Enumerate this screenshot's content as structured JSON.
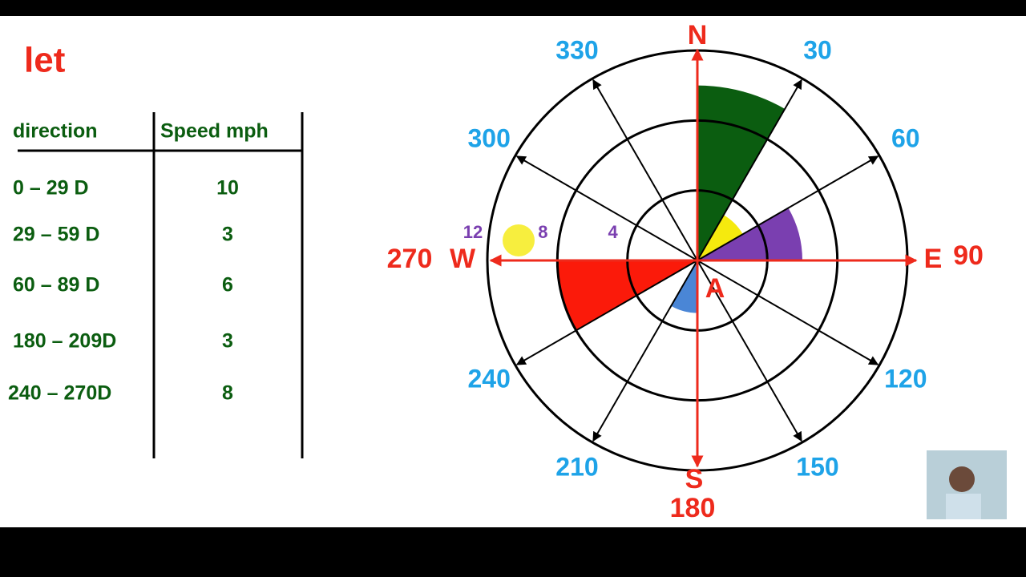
{
  "title": "let",
  "table": {
    "headers": [
      "direction",
      "Speed mph"
    ],
    "rows": [
      [
        "0 – 29 D",
        10
      ],
      [
        "29 – 59 D",
        3
      ],
      [
        "60 – 89 D",
        6
      ],
      [
        "180 – 209D",
        3
      ],
      [
        "240 – 270D",
        8
      ]
    ]
  },
  "rose": {
    "rings": [
      4,
      8,
      12
    ],
    "bearings": [
      30,
      60,
      120,
      150,
      210,
      240,
      300,
      330
    ],
    "north": "N",
    "east": "E",
    "east_value": 90,
    "south": "S",
    "south_value": 180,
    "west": "W",
    "west_value": 270,
    "point_label": "A",
    "sectors": [
      {
        "from": 0,
        "to": 30,
        "color": "#0b5d10"
      },
      {
        "from": 30,
        "to": 60,
        "color": "#f5ea0e"
      },
      {
        "from": 60,
        "to": 90,
        "color": "#7a3fb0"
      },
      {
        "from": 180,
        "to": 210,
        "color": "#4a86d6"
      },
      {
        "from": 240,
        "to": 270,
        "color": "#fb1a0a"
      }
    ]
  }
}
